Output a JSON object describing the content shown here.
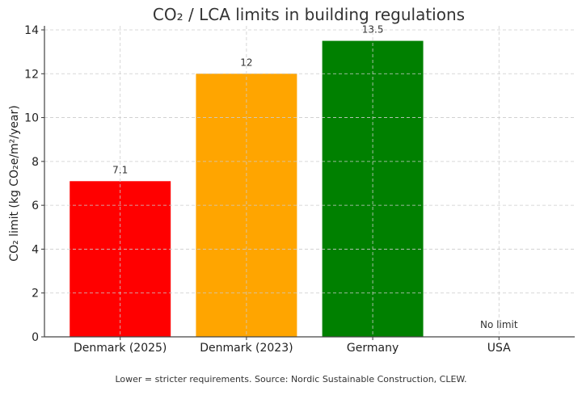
{
  "chart_data": {
    "type": "bar",
    "title": "CO₂ / LCA limits in building regulations",
    "xlabel": "",
    "ylabel": "CO₂ limit (kg CO₂e/m²/year)",
    "categories": [
      "Denmark (2025)",
      "Denmark (2023)",
      "Germany",
      "USA"
    ],
    "values": [
      7.1,
      12,
      13.5,
      null
    ],
    "data_labels": [
      "7.1",
      "12",
      "13.5",
      "No limit"
    ],
    "colors": [
      "#ff0000",
      "#ffa500",
      "#008000",
      null
    ],
    "ylim": [
      0,
      14
    ],
    "yticks": [
      0,
      2,
      4,
      6,
      8,
      10,
      12,
      14
    ],
    "grid": true,
    "caption": "Lower = stricter requirements. Source: Nordic Sustainable Construction, CLEW."
  }
}
